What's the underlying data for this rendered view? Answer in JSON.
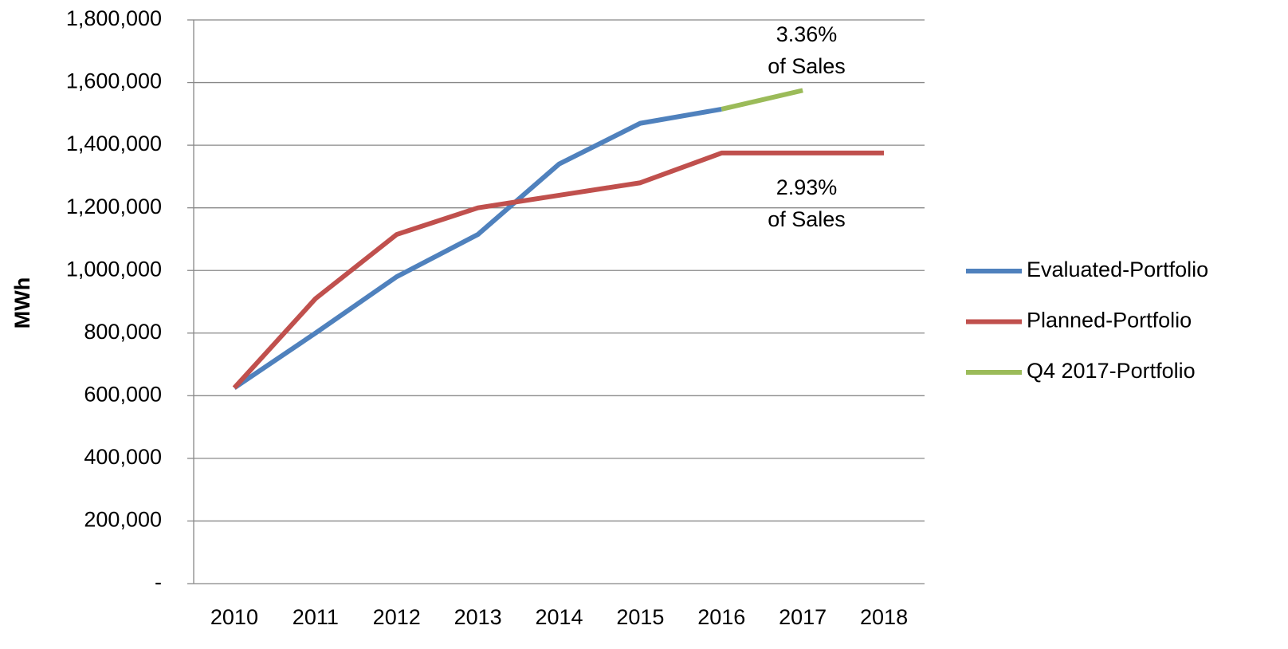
{
  "chart_data": {
    "type": "line",
    "y_label": "MWh",
    "categories": [
      "2010",
      "2011",
      "2012",
      "2013",
      "2014",
      "2015",
      "2016",
      "2017",
      "2018"
    ],
    "series": [
      {
        "name": "Evaluated-Portfolio",
        "color": "#4f81bd",
        "values": [
          625000,
          800000,
          980000,
          1115000,
          1340000,
          1470000,
          1515000,
          null,
          null
        ]
      },
      {
        "name": "Planned-Portfolio",
        "color": "#c0504d",
        "values": [
          625000,
          910000,
          1115000,
          1200000,
          1240000,
          1280000,
          1375000,
          1375000,
          1375000
        ]
      },
      {
        "name": "Q4 2017-Portfolio",
        "color": "#9bbb59",
        "values": [
          null,
          null,
          null,
          null,
          null,
          null,
          1515000,
          1575000,
          null
        ]
      }
    ],
    "annotations": [
      [
        "3.36%",
        "of Sales"
      ],
      [
        "2.93%",
        "of Sales"
      ]
    ],
    "ylim": [
      0,
      1800000
    ],
    "yticks": [
      {
        "value": 0,
        "label": "-"
      },
      {
        "value": 200000,
        "label": "200,000"
      },
      {
        "value": 400000,
        "label": "400,000"
      },
      {
        "value": 600000,
        "label": "600,000"
      },
      {
        "value": 800000,
        "label": "800,000"
      },
      {
        "value": 1000000,
        "label": "1,000,000"
      },
      {
        "value": 1200000,
        "label": "1,200,000"
      },
      {
        "value": 1400000,
        "label": "1,400,000"
      },
      {
        "value": 1600000,
        "label": "1,600,000"
      },
      {
        "value": 1800000,
        "label": "1,800,000"
      }
    ],
    "grid": true,
    "legend": "right"
  }
}
